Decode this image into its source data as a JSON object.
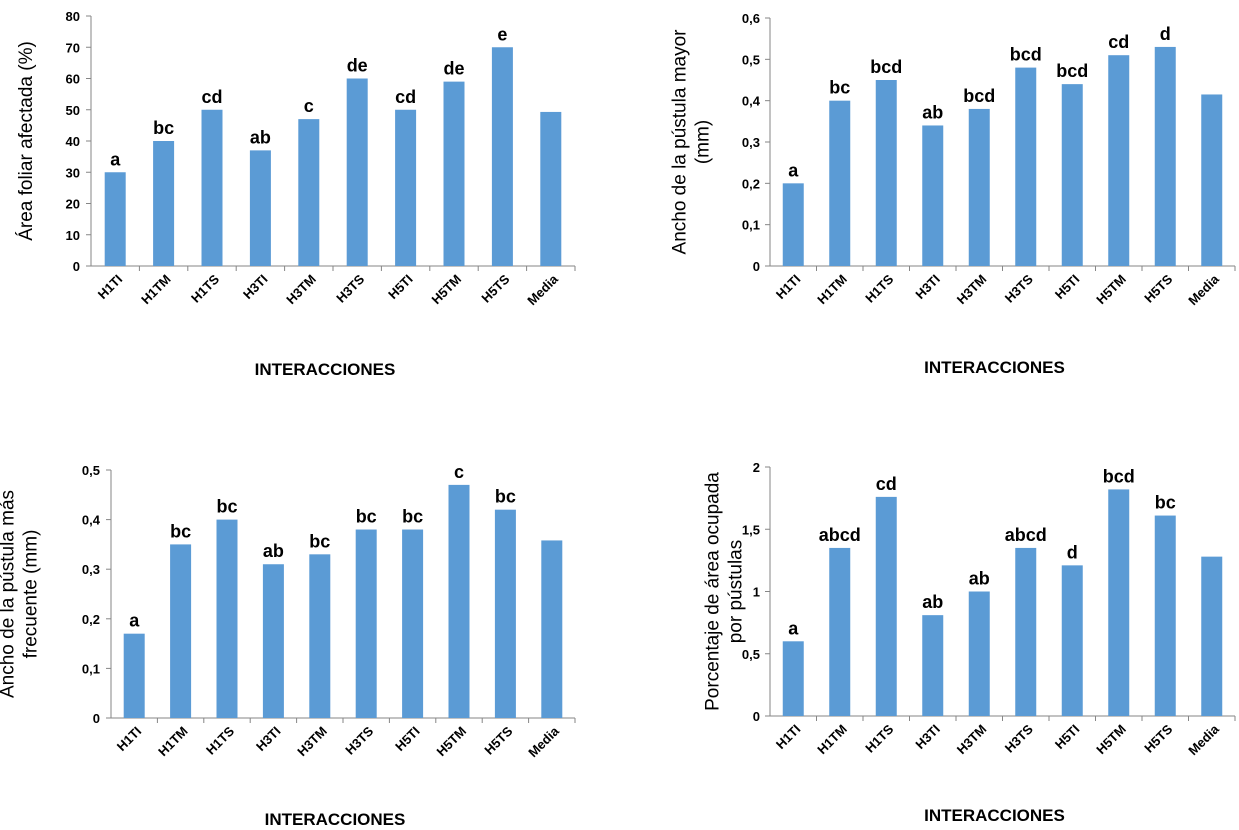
{
  "colors": {
    "bar": "#5B9BD5",
    "axis": "#868686",
    "text": "#000000"
  },
  "chart_data": [
    {
      "type": "bar",
      "categories": [
        "H1TI",
        "H1TM",
        "H1TS",
        "H3TI",
        "H3TM",
        "H3TS",
        "H5TI",
        "H5TM",
        "H5TS",
        "Media"
      ],
      "values": [
        30,
        40,
        50,
        37,
        47,
        60,
        50,
        59,
        70,
        49.3
      ],
      "bar_labels": [
        "a",
        "bc",
        "cd",
        "ab",
        "c",
        "de",
        "cd",
        "de",
        "e",
        ""
      ],
      "xlabel": "INTERACCIONES",
      "ylabel_lines": [
        "Área foliar afectada (%)"
      ],
      "ylim": [
        0,
        80
      ],
      "yticks": [
        0,
        10,
        20,
        30,
        40,
        50,
        60,
        70,
        80
      ],
      "ytick_labels": [
        "0",
        "10",
        "20",
        "30",
        "40",
        "50",
        "60",
        "70",
        "80"
      ],
      "grid": false,
      "legend": "none"
    },
    {
      "type": "bar",
      "categories": [
        "H1TI",
        "H1TM",
        "H1TS",
        "H3TI",
        "H3TM",
        "H3TS",
        "H5TI",
        "H5TM",
        "H5TS",
        "Media"
      ],
      "values": [
        0.2,
        0.4,
        0.45,
        0.34,
        0.38,
        0.48,
        0.44,
        0.51,
        0.53,
        0.415
      ],
      "bar_labels": [
        "a",
        "bc",
        "bcd",
        "ab",
        "bcd",
        "bcd",
        "bcd",
        "cd",
        "d",
        ""
      ],
      "xlabel": "INTERACCIONES",
      "ylabel_lines": [
        "Ancho de la pústula mayor",
        "(mm)"
      ],
      "ylim": [
        0,
        0.6
      ],
      "yticks": [
        0,
        0.1,
        0.2,
        0.3,
        0.4,
        0.5,
        0.6
      ],
      "ytick_labels": [
        "0",
        "0,1",
        "0,2",
        "0,3",
        "0,4",
        "0,5",
        "0,6"
      ],
      "grid": false,
      "legend": "none"
    },
    {
      "type": "bar",
      "categories": [
        "H1TI",
        "H1TM",
        "H1TS",
        "H3TI",
        "H3TM",
        "H3TS",
        "H5TI",
        "H5TM",
        "H5TS",
        "Media"
      ],
      "values": [
        0.17,
        0.35,
        0.4,
        0.31,
        0.33,
        0.38,
        0.38,
        0.47,
        0.42,
        0.358
      ],
      "bar_labels": [
        "a",
        "bc",
        "bc",
        "ab",
        "bc",
        "bc",
        "bc",
        "c",
        "bc",
        ""
      ],
      "xlabel": "INTERACCIONES",
      "ylabel_lines": [
        "Ancho de la pústula más",
        "frecuente (mm)"
      ],
      "ylim": [
        0,
        0.5
      ],
      "yticks": [
        0,
        0.1,
        0.2,
        0.3,
        0.4,
        0.5
      ],
      "ytick_labels": [
        "0",
        "0,1",
        "0,2",
        "0,3",
        "0,4",
        "0,5"
      ],
      "grid": false,
      "legend": "none"
    },
    {
      "type": "bar",
      "categories": [
        "H1TI",
        "H1TM",
        "H1TS",
        "H3TI",
        "H3TM",
        "H3TS",
        "H5TI",
        "H5TM",
        "H5TS",
        "Media"
      ],
      "values": [
        0.6,
        1.35,
        1.76,
        0.81,
        1.0,
        1.35,
        1.21,
        1.82,
        1.61,
        1.28
      ],
      "bar_labels": [
        "a",
        "abcd",
        "cd",
        "ab",
        "ab",
        "abcd",
        "d",
        "bcd",
        "bc",
        ""
      ],
      "xlabel": "INTERACCIONES",
      "ylabel_lines": [
        "Porcentaje de área ocupada",
        "por pústulas"
      ],
      "ylim": [
        0,
        2
      ],
      "yticks": [
        0,
        0.5,
        1,
        1.5,
        2
      ],
      "ytick_labels": [
        "0",
        "0,5",
        "1",
        "1,5",
        "2"
      ],
      "grid": false,
      "legend": "none"
    }
  ]
}
